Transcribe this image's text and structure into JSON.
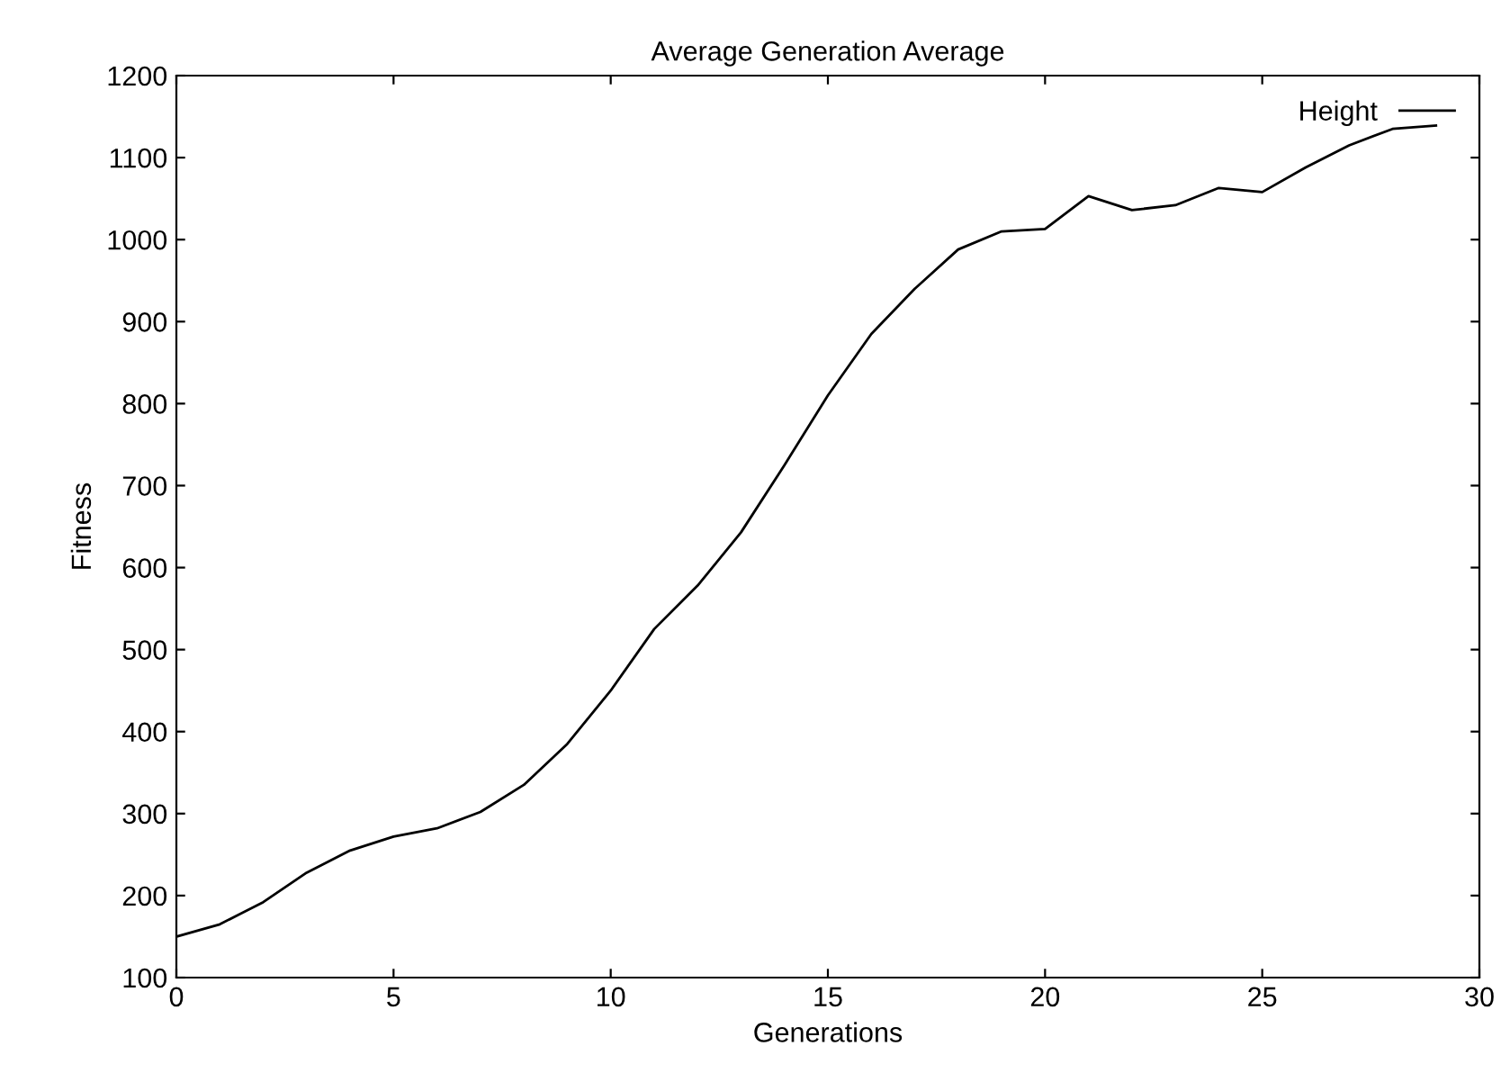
{
  "chart_data": {
    "type": "line",
    "title": "Average Generation Average",
    "xlabel": "Generations",
    "ylabel": "Fitness",
    "x": [
      0,
      1,
      2,
      3,
      4,
      5,
      6,
      7,
      8,
      9,
      10,
      11,
      12,
      13,
      14,
      15,
      16,
      17,
      18,
      19,
      20,
      21,
      22,
      23,
      24,
      25,
      26,
      27,
      28,
      29
    ],
    "series": [
      {
        "name": "Height",
        "color": "#000000",
        "values": [
          150,
          165,
          192,
          228,
          255,
          272,
          282,
          302,
          335,
          385,
          450,
          525,
          578,
          643,
          725,
          810,
          885,
          940,
          988,
          1010,
          1013,
          1053,
          1036,
          1042,
          1063,
          1058,
          1088,
          1115,
          1135,
          1139
        ]
      }
    ],
    "xlim": [
      0,
      30
    ],
    "xticks": [
      0,
      5,
      10,
      15,
      20,
      25,
      30
    ],
    "ylim": [
      100,
      1200
    ],
    "yticks": [
      100,
      200,
      300,
      400,
      500,
      600,
      700,
      800,
      900,
      1000,
      1100,
      1200
    ],
    "grid": false,
    "legend": "top right",
    "marker": "none",
    "line_style": "solid"
  }
}
